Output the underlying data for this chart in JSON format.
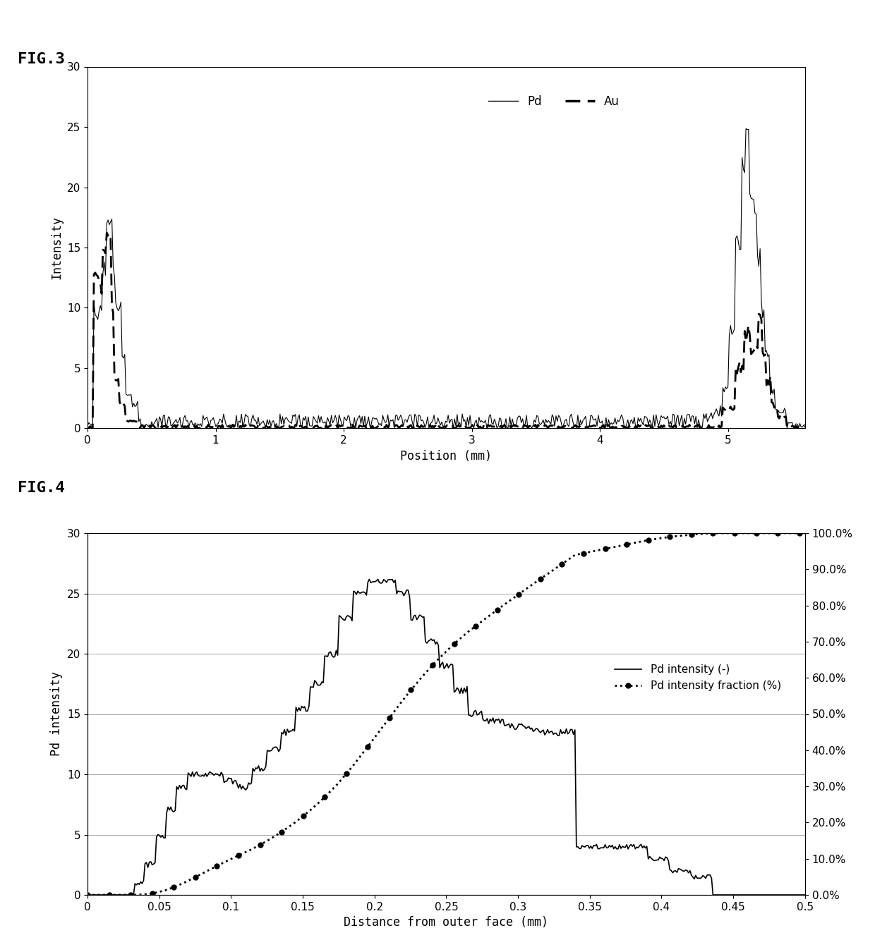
{
  "fig3_title": "FIG.3",
  "fig4_title": "FIG.4",
  "fig3_xlabel": "Position (mm)",
  "fig3_ylabel": "Intensity",
  "fig4_xlabel": "Distance from outer face (mm)",
  "fig4_ylabel": "Pd intensity",
  "fig4_ylabel2": "Pd intensity fraction (%)",
  "fig3_xlim": [
    0,
    5.6
  ],
  "fig3_ylim": [
    0,
    30
  ],
  "fig4_xlim": [
    0,
    0.5
  ],
  "fig4_ylim": [
    0,
    30
  ],
  "fig4_ylim2": [
    0,
    1.0
  ],
  "fig3_xticks": [
    0,
    1,
    2,
    3,
    4,
    5
  ],
  "fig3_yticks": [
    0,
    5,
    10,
    15,
    20,
    25,
    30
  ],
  "fig4_xticks": [
    0,
    0.05,
    0.1,
    0.15,
    0.2,
    0.25,
    0.3,
    0.35,
    0.4,
    0.45,
    0.5
  ],
  "fig4_yticks": [
    0,
    5,
    10,
    15,
    20,
    25,
    30
  ],
  "fig4_yticks2": [
    0.0,
    0.1,
    0.2,
    0.3,
    0.4,
    0.5,
    0.6,
    0.7,
    0.8,
    0.9,
    1.0
  ],
  "background": "#ffffff",
  "line_color": "#000000"
}
